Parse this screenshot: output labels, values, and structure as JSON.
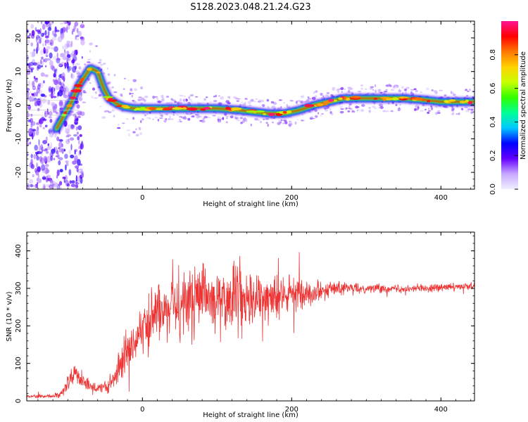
{
  "title": "S128.2023.048.21.24.G23",
  "chart_data": [
    {
      "type": "heatmap",
      "xlabel": "Height of straight line (km)",
      "ylabel": "Frequency (Hz)",
      "xlim": [
        -155,
        445
      ],
      "ylim": [
        -25,
        25
      ],
      "xticks": [
        0,
        200,
        400
      ],
      "yticks": [
        -20,
        -10,
        0,
        10,
        20
      ],
      "colorbar": {
        "label": "Normalized spectral amplitude",
        "range": [
          0.0,
          1.0
        ],
        "ticks": [
          0.0,
          0.2,
          0.4,
          0.6,
          0.8
        ],
        "tick_labels": [
          "0.0",
          "0.2",
          "0.4",
          "0.6",
          "0.8"
        ],
        "colormap": [
          "#f0f0ff",
          "#c8a8ff",
          "#6400ff",
          "#0000ff",
          "#00c8ff",
          "#00ff96",
          "#32ff00",
          "#c8ff00",
          "#ffd200",
          "#ff7800",
          "#ff0000",
          "#ff1493"
        ]
      },
      "ridge": {
        "x": [
          -115,
          -105,
          -95,
          -85,
          -70,
          -60,
          -52,
          -45,
          -35,
          -25,
          -10,
          0,
          30,
          60,
          100,
          130,
          150,
          170,
          190,
          210,
          230,
          250,
          270,
          300,
          350,
          380,
          400,
          445
        ],
        "y": [
          -7,
          -3,
          1,
          6,
          11,
          10,
          5,
          2,
          0.5,
          -0.5,
          -1,
          -1,
          -1,
          -1,
          -1,
          -1.5,
          -2,
          -2.5,
          -2.5,
          -1.5,
          0,
          1,
          2,
          2,
          2,
          1.5,
          1,
          1
        ]
      }
    },
    {
      "type": "line",
      "xlabel": "Height of straight line (km)",
      "ylabel": "SNR (10 * v/v)",
      "xlim": [
        -155,
        445
      ],
      "ylim": [
        0,
        450
      ],
      "xticks": [
        0,
        200,
        400
      ],
      "yticks": [
        0,
        100,
        200,
        300,
        400
      ],
      "color": "#ee3333",
      "envelope": {
        "x": [
          -155,
          -130,
          -110,
          -100,
          -90,
          -80,
          -70,
          -60,
          -50,
          -40,
          -30,
          -20,
          -10,
          0,
          20,
          40,
          60,
          80,
          100,
          120,
          140,
          160,
          180,
          200,
          220,
          240,
          260,
          280,
          300,
          350,
          400,
          445
        ],
        "mean": [
          12,
          12,
          15,
          45,
          75,
          55,
          40,
          32,
          35,
          50,
          90,
          140,
          170,
          190,
          235,
          260,
          265,
          270,
          268,
          272,
          270,
          268,
          275,
          285,
          290,
          295,
          300,
          300,
          300,
          300,
          302,
          305
        ],
        "spread": [
          4,
          4,
          8,
          20,
          25,
          18,
          15,
          12,
          15,
          25,
          40,
          60,
          60,
          65,
          70,
          85,
          90,
          95,
          90,
          85,
          80,
          65,
          55,
          45,
          30,
          25,
          18,
          14,
          12,
          10,
          10,
          10
        ]
      }
    }
  ]
}
